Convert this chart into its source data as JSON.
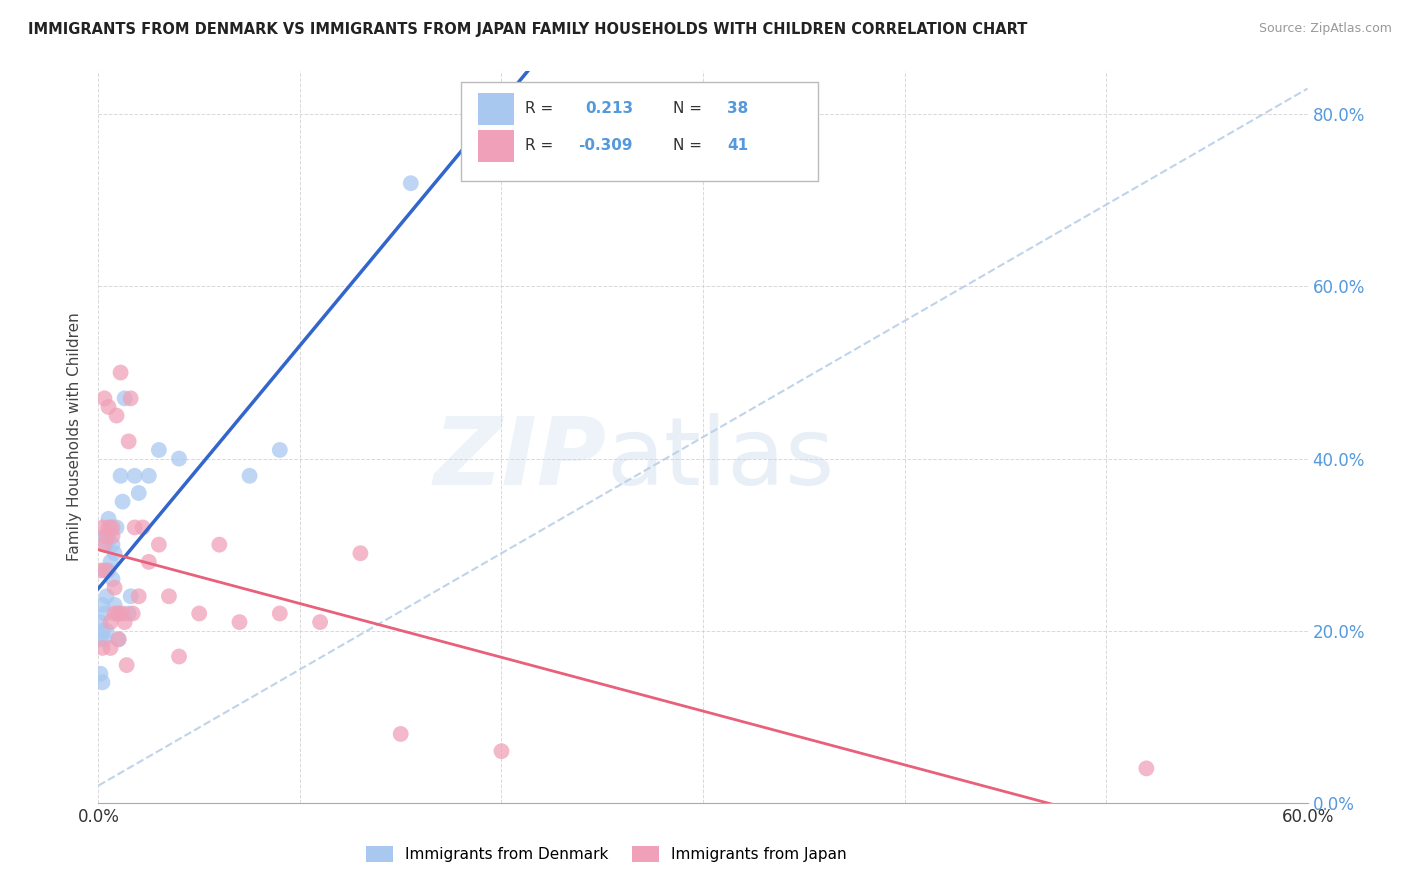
{
  "title": "IMMIGRANTS FROM DENMARK VS IMMIGRANTS FROM JAPAN FAMILY HOUSEHOLDS WITH CHILDREN CORRELATION CHART",
  "source": "Source: ZipAtlas.com",
  "ylabel_left": "Family Households with Children",
  "legend_denmark": "Immigrants from Denmark",
  "legend_japan": "Immigrants from Japan",
  "R_denmark": 0.213,
  "N_denmark": 38,
  "R_japan": -0.309,
  "N_japan": 41,
  "xmin": 0.0,
  "xmax": 0.6,
  "ymin": 0.0,
  "ymax": 0.85,
  "yticks": [
    0.0,
    0.2,
    0.4,
    0.6,
    0.8
  ],
  "xticks": [
    0.0,
    0.1,
    0.2,
    0.3,
    0.4,
    0.5,
    0.6
  ],
  "color_denmark": "#A8C8F0",
  "color_japan": "#F0A0B8",
  "regression_denmark_color": "#3366CC",
  "regression_japan_color": "#E8607A",
  "dashed_line_color": "#B8D0E8",
  "denmark_x": [
    0.001,
    0.001,
    0.001,
    0.002,
    0.002,
    0.002,
    0.003,
    0.003,
    0.003,
    0.003,
    0.004,
    0.004,
    0.004,
    0.005,
    0.005,
    0.005,
    0.006,
    0.006,
    0.007,
    0.007,
    0.008,
    0.008,
    0.009,
    0.01,
    0.01,
    0.011,
    0.012,
    0.013,
    0.015,
    0.016,
    0.018,
    0.02,
    0.025,
    0.03,
    0.04,
    0.075,
    0.09,
    0.155
  ],
  "denmark_y": [
    0.15,
    0.19,
    0.21,
    0.14,
    0.2,
    0.23,
    0.19,
    0.22,
    0.27,
    0.31,
    0.2,
    0.24,
    0.3,
    0.27,
    0.31,
    0.33,
    0.28,
    0.32,
    0.26,
    0.3,
    0.23,
    0.29,
    0.32,
    0.19,
    0.22,
    0.38,
    0.35,
    0.47,
    0.22,
    0.24,
    0.38,
    0.36,
    0.38,
    0.41,
    0.4,
    0.38,
    0.41,
    0.72
  ],
  "japan_x": [
    0.001,
    0.002,
    0.002,
    0.003,
    0.003,
    0.004,
    0.004,
    0.005,
    0.005,
    0.006,
    0.006,
    0.007,
    0.007,
    0.008,
    0.008,
    0.009,
    0.01,
    0.01,
    0.011,
    0.012,
    0.013,
    0.014,
    0.015,
    0.016,
    0.017,
    0.018,
    0.02,
    0.022,
    0.025,
    0.03,
    0.035,
    0.04,
    0.05,
    0.06,
    0.07,
    0.09,
    0.11,
    0.13,
    0.15,
    0.2,
    0.52
  ],
  "japan_y": [
    0.27,
    0.18,
    0.32,
    0.3,
    0.47,
    0.27,
    0.31,
    0.32,
    0.46,
    0.18,
    0.21,
    0.31,
    0.32,
    0.22,
    0.25,
    0.45,
    0.19,
    0.22,
    0.5,
    0.22,
    0.21,
    0.16,
    0.42,
    0.47,
    0.22,
    0.32,
    0.24,
    0.32,
    0.28,
    0.3,
    0.24,
    0.17,
    0.22,
    0.3,
    0.21,
    0.22,
    0.21,
    0.29,
    0.08,
    0.06,
    0.04
  ],
  "background_color": "#FFFFFF",
  "grid_color": "#D0D0D0",
  "right_axis_color": "#5599DD"
}
